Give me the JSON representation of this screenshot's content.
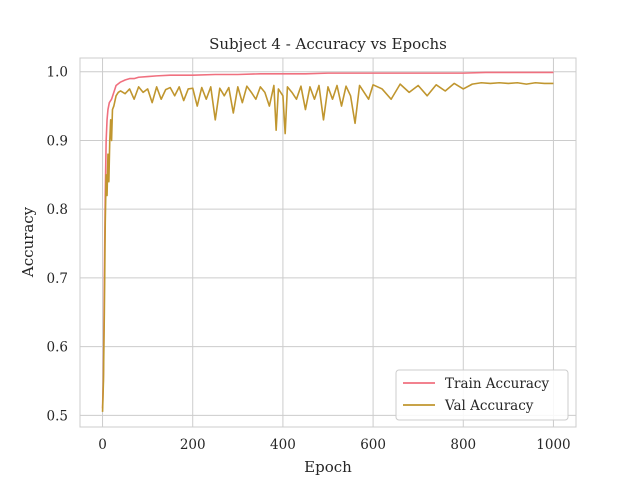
{
  "chart_data": {
    "type": "line",
    "title": "Subject 4 - Accuracy vs Epochs",
    "xlabel": "Epoch",
    "ylabel": "Accuracy",
    "xlim": [
      -50,
      1050
    ],
    "ylim": [
      0.483,
      1.02
    ],
    "xticks": [
      0,
      200,
      400,
      600,
      800,
      1000
    ],
    "yticks": [
      0.5,
      0.6,
      0.7,
      0.8,
      0.9,
      1.0
    ],
    "xtick_labels": [
      "0",
      "200",
      "400",
      "600",
      "800",
      "1000"
    ],
    "ytick_labels": [
      "0.5",
      "0.6",
      "0.7",
      "0.8",
      "0.9",
      "1.0"
    ],
    "grid": true,
    "legend_position": "lower-right",
    "series": [
      {
        "name": "Train Accuracy",
        "color": "#f0707f",
        "x": [
          0,
          2,
          4,
          6,
          8,
          10,
          12,
          15,
          20,
          25,
          30,
          40,
          50,
          60,
          70,
          80,
          100,
          120,
          150,
          200,
          250,
          300,
          350,
          400,
          450,
          500,
          550,
          600,
          650,
          700,
          750,
          800,
          850,
          900,
          950,
          1000
        ],
        "y": [
          0.51,
          0.56,
          0.7,
          0.82,
          0.9,
          0.93,
          0.945,
          0.955,
          0.96,
          0.97,
          0.98,
          0.985,
          0.988,
          0.99,
          0.99,
          0.992,
          0.993,
          0.994,
          0.995,
          0.995,
          0.996,
          0.996,
          0.997,
          0.997,
          0.997,
          0.998,
          0.998,
          0.998,
          0.998,
          0.998,
          0.998,
          0.998,
          0.999,
          0.999,
          0.999,
          0.999
        ]
      },
      {
        "name": "Val Accuracy",
        "color": "#c0962f",
        "x": [
          0,
          2,
          4,
          6,
          8,
          10,
          12,
          14,
          16,
          18,
          20,
          22,
          25,
          30,
          35,
          40,
          50,
          60,
          70,
          80,
          90,
          100,
          110,
          120,
          130,
          140,
          150,
          160,
          170,
          180,
          190,
          200,
          210,
          220,
          230,
          240,
          250,
          260,
          270,
          280,
          290,
          300,
          310,
          320,
          330,
          340,
          350,
          360,
          370,
          380,
          385,
          390,
          400,
          405,
          410,
          420,
          430,
          440,
          450,
          460,
          470,
          480,
          490,
          500,
          510,
          520,
          530,
          540,
          550,
          560,
          570,
          580,
          590,
          600,
          620,
          640,
          660,
          680,
          700,
          720,
          740,
          760,
          780,
          800,
          820,
          840,
          860,
          880,
          900,
          920,
          940,
          960,
          980,
          1000
        ],
        "y": [
          0.505,
          0.55,
          0.65,
          0.78,
          0.85,
          0.82,
          0.88,
          0.84,
          0.9,
          0.93,
          0.9,
          0.945,
          0.95,
          0.965,
          0.97,
          0.972,
          0.968,
          0.975,
          0.96,
          0.978,
          0.97,
          0.975,
          0.955,
          0.978,
          0.96,
          0.974,
          0.977,
          0.965,
          0.978,
          0.958,
          0.975,
          0.976,
          0.95,
          0.977,
          0.96,
          0.978,
          0.93,
          0.976,
          0.965,
          0.977,
          0.94,
          0.978,
          0.955,
          0.979,
          0.97,
          0.96,
          0.978,
          0.97,
          0.95,
          0.98,
          0.915,
          0.975,
          0.965,
          0.91,
          0.978,
          0.97,
          0.96,
          0.979,
          0.945,
          0.978,
          0.96,
          0.98,
          0.93,
          0.978,
          0.96,
          0.98,
          0.95,
          0.979,
          0.965,
          0.925,
          0.98,
          0.97,
          0.96,
          0.981,
          0.975,
          0.96,
          0.982,
          0.97,
          0.98,
          0.965,
          0.981,
          0.972,
          0.983,
          0.975,
          0.982,
          0.984,
          0.983,
          0.984,
          0.983,
          0.984,
          0.982,
          0.984,
          0.983,
          0.983
        ]
      }
    ]
  }
}
